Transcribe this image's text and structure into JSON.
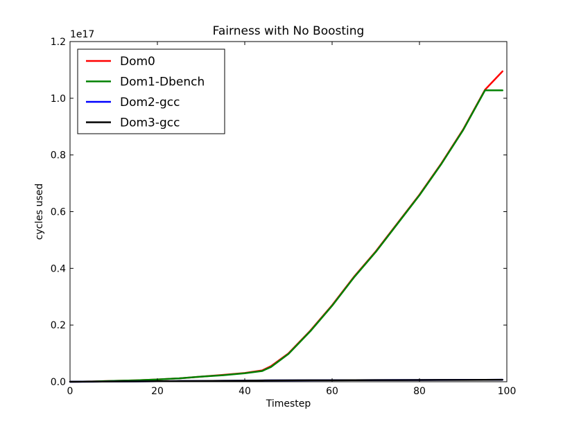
{
  "chart_data": {
    "type": "line",
    "title": "Fairness with No Boosting",
    "xlabel": "Timestep",
    "ylabel": "cycles used",
    "y_offset_label": "1e17",
    "xlim": [
      0,
      100
    ],
    "ylim": [
      0,
      1.2
    ],
    "x_ticks": [
      0,
      20,
      40,
      60,
      80,
      100
    ],
    "x_tick_labels": [
      "0",
      "20",
      "40",
      "60",
      "80",
      "100"
    ],
    "y_ticks": [
      0,
      0.2,
      0.4,
      0.6,
      0.8,
      1.0,
      1.2
    ],
    "y_tick_labels": [
      "0.0",
      "0.2",
      "0.4",
      "0.6",
      "0.8",
      "1.0",
      "1.2"
    ],
    "grid": false,
    "legend_position": "top-left",
    "x": [
      0,
      5,
      10,
      15,
      20,
      25,
      30,
      35,
      40,
      44,
      46,
      50,
      55,
      60,
      65,
      70,
      75,
      80,
      85,
      90,
      95,
      99
    ],
    "series": [
      {
        "name": "Dom0",
        "color": "#ff0000",
        "values": [
          0,
          0.001,
          0.003,
          0.005,
          0.008,
          0.012,
          0.018,
          0.024,
          0.031,
          0.04,
          0.055,
          0.1,
          0.18,
          0.27,
          0.37,
          0.46,
          0.56,
          0.66,
          0.77,
          0.89,
          1.03,
          1.095
        ]
      },
      {
        "name": "Dom1-Dbench",
        "color": "#008000",
        "values": [
          0,
          0.001,
          0.003,
          0.005,
          0.008,
          0.012,
          0.018,
          0.023,
          0.03,
          0.038,
          0.052,
          0.098,
          0.178,
          0.268,
          0.368,
          0.458,
          0.558,
          0.658,
          0.768,
          0.888,
          1.028,
          1.028
        ]
      },
      {
        "name": "Dom2-gcc",
        "color": "#0000ff",
        "values": [
          0,
          0.0003,
          0.0008,
          0.0013,
          0.0018,
          0.0023,
          0.0028,
          0.0033,
          0.0038,
          0.0045,
          0.0048,
          0.005,
          0.0052,
          0.0054,
          0.0056,
          0.0058,
          0.006,
          0.0062,
          0.0064,
          0.0066,
          0.0068,
          0.007
        ]
      },
      {
        "name": "Dom3-gcc",
        "color": "#000000",
        "values": [
          0,
          0.0003,
          0.0008,
          0.0013,
          0.0018,
          0.0023,
          0.0028,
          0.0033,
          0.0038,
          0.0044,
          0.0047,
          0.0049,
          0.0051,
          0.0053,
          0.0055,
          0.0057,
          0.0059,
          0.0061,
          0.0063,
          0.0065,
          0.0067,
          0.0069
        ]
      }
    ]
  }
}
